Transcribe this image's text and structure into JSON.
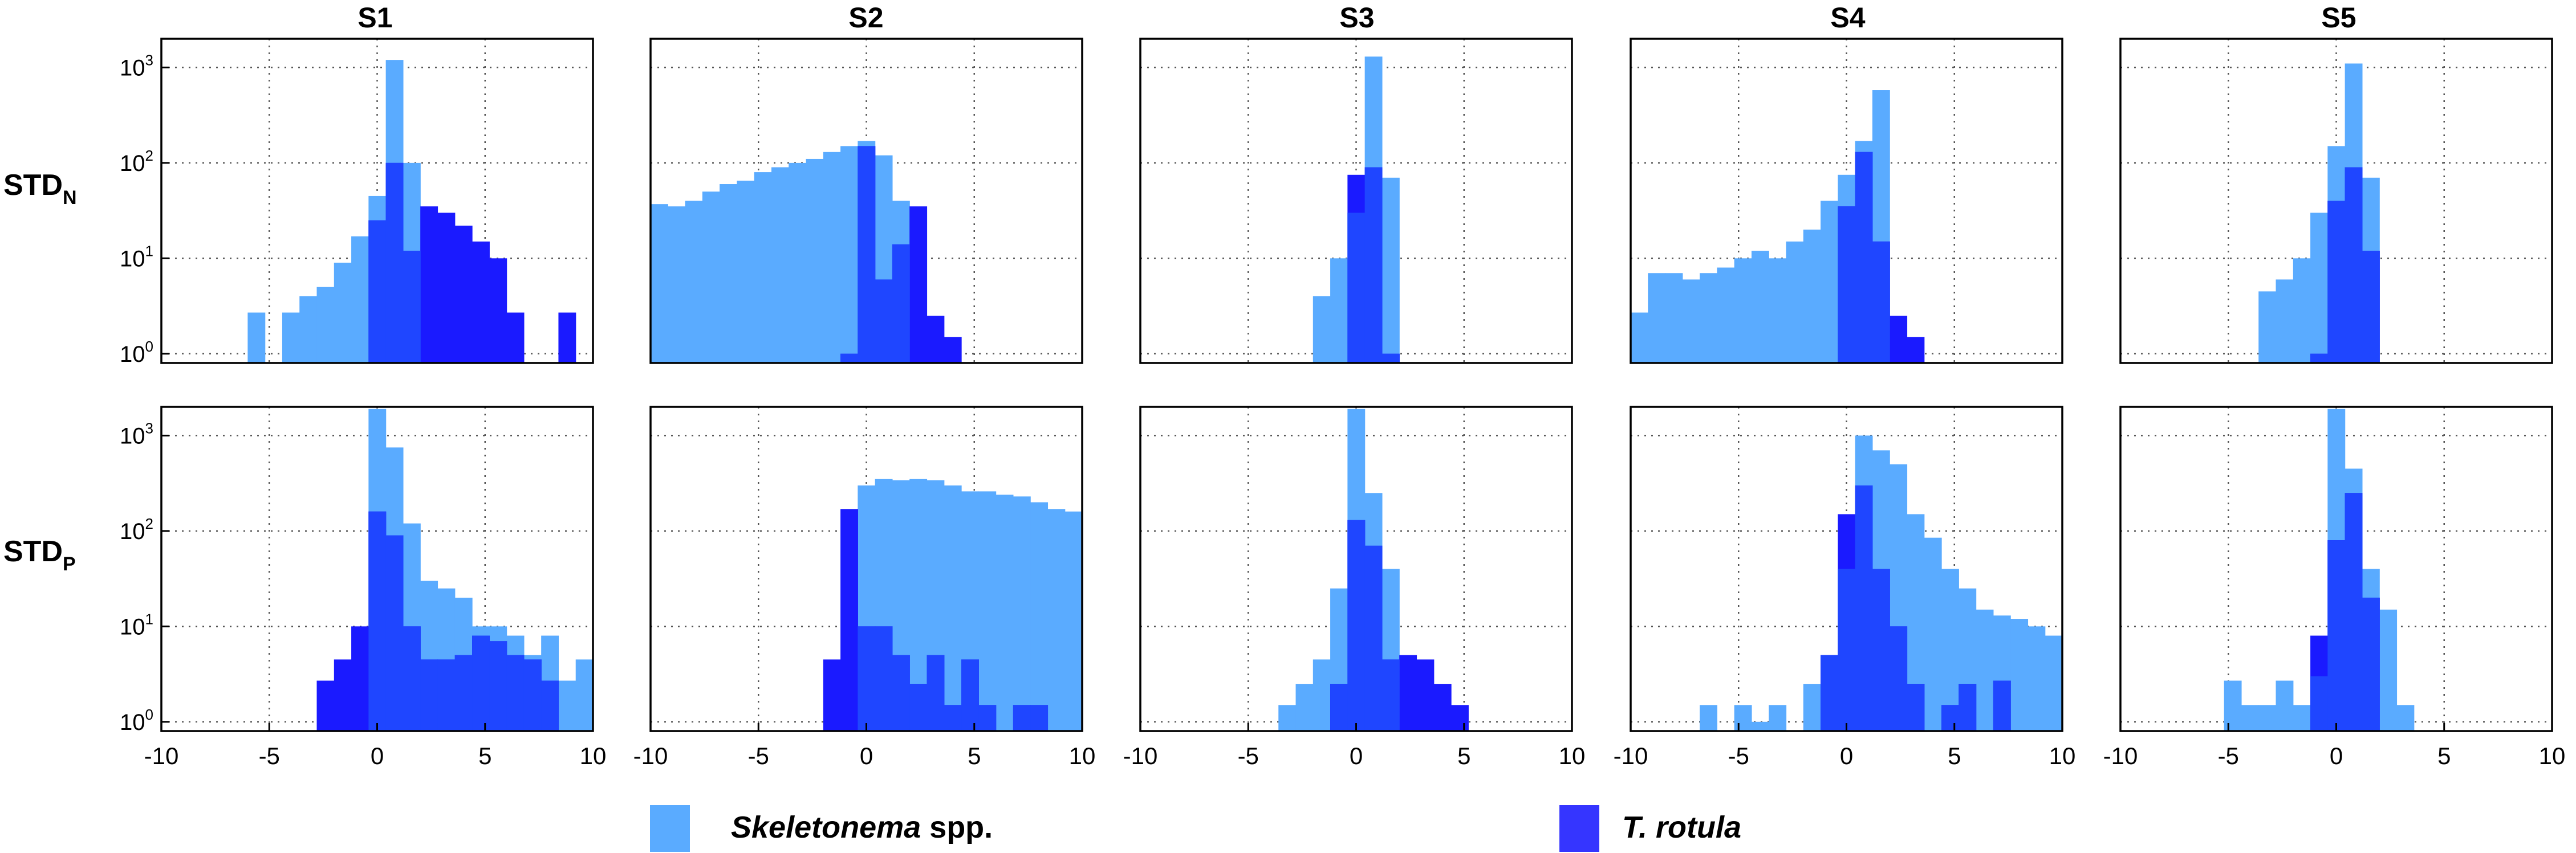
{
  "figure": {
    "column_titles": [
      "S1",
      "S2",
      "S3",
      "S4",
      "S5"
    ],
    "row_labels": [
      {
        "main": "STD",
        "sub": "N"
      },
      {
        "main": "STD",
        "sub": "P"
      }
    ],
    "x_tick_labels": [
      "-10",
      "-5",
      "0",
      "5",
      "10"
    ],
    "y_tick_labels": [
      {
        "base": "10",
        "exp": "0"
      },
      {
        "base": "10",
        "exp": "1"
      },
      {
        "base": "10",
        "exp": "2"
      },
      {
        "base": "10",
        "exp": "3"
      }
    ],
    "legend": [
      {
        "italic": "Skeletonema",
        "normal": " spp.",
        "color": "#5aabff"
      },
      {
        "italic": "T. rotula",
        "normal": "",
        "color": "#1a1aff"
      }
    ]
  },
  "chart_data": {
    "type": "histogram",
    "y_scale": "log",
    "grid": true,
    "xlim": [
      -10,
      10
    ],
    "ylim": [
      0.8,
      2000
    ],
    "bin_width": 0.8,
    "colors": {
      "skeletonema": "#5aabff",
      "trotula": "#1a1aff",
      "overlap": "#1f46ff"
    },
    "series_names": [
      "Skeletonema spp.",
      "T. rotula"
    ],
    "panels": [
      {
        "row": "STD_N",
        "col": "S1",
        "skeletonema": [
          [
            -6.0,
            2.7
          ],
          [
            -4.4,
            2.7
          ],
          [
            -3.6,
            4
          ],
          [
            -2.8,
            5
          ],
          [
            -2.0,
            9
          ],
          [
            -1.2,
            17
          ],
          [
            -0.4,
            45
          ],
          [
            0.4,
            1200
          ],
          [
            1.2,
            100
          ]
        ],
        "trotula": [
          [
            -0.4,
            25
          ],
          [
            0.4,
            100
          ],
          [
            1.2,
            12
          ],
          [
            2.0,
            35
          ],
          [
            2.8,
            30
          ],
          [
            3.6,
            22
          ],
          [
            4.4,
            15
          ],
          [
            5.2,
            10
          ],
          [
            6.0,
            2.7
          ],
          [
            8.4,
            2.7
          ]
        ]
      },
      {
        "row": "STD_N",
        "col": "S2",
        "skeletonema": [
          [
            -10.0,
            37
          ],
          [
            -9.2,
            35
          ],
          [
            -8.4,
            40
          ],
          [
            -7.6,
            50
          ],
          [
            -6.8,
            60
          ],
          [
            -6.0,
            65
          ],
          [
            -5.2,
            80
          ],
          [
            -4.4,
            90
          ],
          [
            -3.6,
            100
          ],
          [
            -2.8,
            110
          ],
          [
            -2.0,
            130
          ],
          [
            -1.2,
            150
          ],
          [
            -0.4,
            170
          ],
          [
            0.4,
            120
          ],
          [
            1.2,
            40
          ]
        ],
        "trotula": [
          [
            -1.2,
            1
          ],
          [
            -0.4,
            150
          ],
          [
            0.4,
            6
          ],
          [
            1.2,
            14
          ],
          [
            2.0,
            35
          ],
          [
            2.8,
            2.5
          ],
          [
            3.6,
            1.5
          ]
        ]
      },
      {
        "row": "STD_N",
        "col": "S3",
        "skeletonema": [
          [
            -2.0,
            4
          ],
          [
            -1.2,
            10
          ],
          [
            -0.4,
            30
          ],
          [
            0.4,
            1300
          ],
          [
            1.2,
            70
          ]
        ],
        "trotula": [
          [
            -0.4,
            75
          ],
          [
            0.4,
            90
          ],
          [
            1.2,
            1
          ]
        ]
      },
      {
        "row": "STD_N",
        "col": "S4",
        "skeletonema": [
          [
            -10.0,
            2.7
          ],
          [
            -9.2,
            7
          ],
          [
            -8.4,
            7
          ],
          [
            -7.6,
            6
          ],
          [
            -6.8,
            7
          ],
          [
            -6.0,
            8
          ],
          [
            -5.2,
            10
          ],
          [
            -4.4,
            12
          ],
          [
            -3.6,
            10
          ],
          [
            -2.8,
            15
          ],
          [
            -2.0,
            20
          ],
          [
            -1.2,
            40
          ],
          [
            -0.4,
            75
          ],
          [
            0.4,
            170
          ],
          [
            1.2,
            580
          ]
        ],
        "trotula": [
          [
            -0.4,
            35
          ],
          [
            0.4,
            130
          ],
          [
            1.2,
            15
          ],
          [
            2.0,
            2.5
          ],
          [
            2.8,
            1.5
          ]
        ]
      },
      {
        "row": "STD_N",
        "col": "S5",
        "skeletonema": [
          [
            -3.6,
            4.5
          ],
          [
            -2.8,
            6
          ],
          [
            -2.0,
            10
          ],
          [
            -1.2,
            30
          ],
          [
            -0.4,
            150
          ],
          [
            0.4,
            1100
          ],
          [
            1.2,
            70
          ]
        ],
        "trotula": [
          [
            -1.2,
            1
          ],
          [
            -0.4,
            40
          ],
          [
            0.4,
            90
          ],
          [
            1.2,
            12
          ]
        ]
      },
      {
        "row": "STD_P",
        "col": "S1",
        "skeletonema": [
          [
            -0.4,
            1900
          ],
          [
            0.4,
            750
          ],
          [
            1.2,
            120
          ],
          [
            2.0,
            30
          ],
          [
            2.8,
            25
          ],
          [
            3.6,
            20
          ],
          [
            4.4,
            10
          ],
          [
            5.2,
            10
          ],
          [
            6.0,
            8
          ],
          [
            6.8,
            5
          ],
          [
            7.6,
            8
          ],
          [
            8.4,
            2.7
          ],
          [
            9.2,
            4.5
          ]
        ],
        "trotula": [
          [
            -2.8,
            2.7
          ],
          [
            -2.0,
            4.5
          ],
          [
            -1.2,
            10
          ],
          [
            -0.4,
            160
          ],
          [
            0.4,
            90
          ],
          [
            1.2,
            10
          ],
          [
            2.0,
            4.5
          ],
          [
            2.8,
            4.5
          ],
          [
            3.6,
            5
          ],
          [
            4.4,
            8
          ],
          [
            5.2,
            7
          ],
          [
            6.0,
            5
          ],
          [
            6.8,
            4.5
          ],
          [
            7.6,
            2.7
          ]
        ]
      },
      {
        "row": "STD_P",
        "col": "S2",
        "skeletonema": [
          [
            -0.4,
            300
          ],
          [
            0.4,
            350
          ],
          [
            1.2,
            340
          ],
          [
            2.0,
            350
          ],
          [
            2.8,
            340
          ],
          [
            3.6,
            300
          ],
          [
            4.4,
            260
          ],
          [
            5.2,
            260
          ],
          [
            6.0,
            240
          ],
          [
            6.8,
            230
          ],
          [
            7.6,
            200
          ],
          [
            8.4,
            170
          ],
          [
            9.2,
            160
          ]
        ],
        "trotula": [
          [
            -2.0,
            4.5
          ],
          [
            -1.2,
            170
          ],
          [
            -0.4,
            10
          ],
          [
            0.4,
            10
          ],
          [
            1.2,
            5
          ],
          [
            2.0,
            2.5
          ],
          [
            2.8,
            5
          ],
          [
            3.6,
            1.5
          ],
          [
            4.4,
            4.5
          ],
          [
            5.2,
            1.5
          ],
          [
            6.8,
            1.5
          ],
          [
            7.6,
            1.5
          ]
        ]
      },
      {
        "row": "STD_P",
        "col": "S3",
        "skeletonema": [
          [
            -3.6,
            1.5
          ],
          [
            -2.8,
            2.5
          ],
          [
            -2.0,
            4.5
          ],
          [
            -1.2,
            25
          ],
          [
            -0.4,
            1900
          ],
          [
            0.4,
            250
          ],
          [
            1.2,
            40
          ]
        ],
        "trotula": [
          [
            -1.2,
            2.5
          ],
          [
            -0.4,
            130
          ],
          [
            0.4,
            70
          ],
          [
            1.2,
            4.5
          ],
          [
            2.0,
            5
          ],
          [
            2.8,
            4.5
          ],
          [
            3.6,
            2.5
          ],
          [
            4.4,
            1.5
          ]
        ]
      },
      {
        "row": "STD_P",
        "col": "S4",
        "skeletonema": [
          [
            -6.8,
            1.5
          ],
          [
            -5.2,
            1.5
          ],
          [
            -4.4,
            1
          ],
          [
            -3.6,
            1.5
          ],
          [
            -2.0,
            2.5
          ],
          [
            -1.2,
            5
          ],
          [
            -0.4,
            40
          ],
          [
            0.4,
            1000
          ],
          [
            1.2,
            700
          ],
          [
            2.0,
            500
          ],
          [
            2.8,
            150
          ],
          [
            3.6,
            85
          ],
          [
            4.4,
            40
          ],
          [
            5.2,
            25
          ],
          [
            6.0,
            15
          ],
          [
            6.8,
            13
          ],
          [
            7.6,
            12
          ],
          [
            8.4,
            10
          ],
          [
            9.2,
            8
          ]
        ],
        "trotula": [
          [
            -1.2,
            5
          ],
          [
            -0.4,
            150
          ],
          [
            0.4,
            300
          ],
          [
            1.2,
            40
          ],
          [
            2.0,
            10
          ],
          [
            2.8,
            2.5
          ],
          [
            4.4,
            1.5
          ],
          [
            5.2,
            2.5
          ],
          [
            6.8,
            2.7
          ]
        ]
      },
      {
        "row": "STD_P",
        "col": "S5",
        "skeletonema": [
          [
            -5.2,
            2.7
          ],
          [
            -4.4,
            1.5
          ],
          [
            -3.6,
            1.5
          ],
          [
            -2.8,
            2.7
          ],
          [
            -2.0,
            1.5
          ],
          [
            -1.2,
            3
          ],
          [
            -0.4,
            1900
          ],
          [
            0.4,
            450
          ],
          [
            1.2,
            40
          ],
          [
            2.0,
            15
          ],
          [
            2.8,
            1.5
          ]
        ],
        "trotula": [
          [
            -1.2,
            8
          ],
          [
            -0.4,
            80
          ],
          [
            0.4,
            250
          ],
          [
            1.2,
            20
          ]
        ]
      }
    ]
  }
}
